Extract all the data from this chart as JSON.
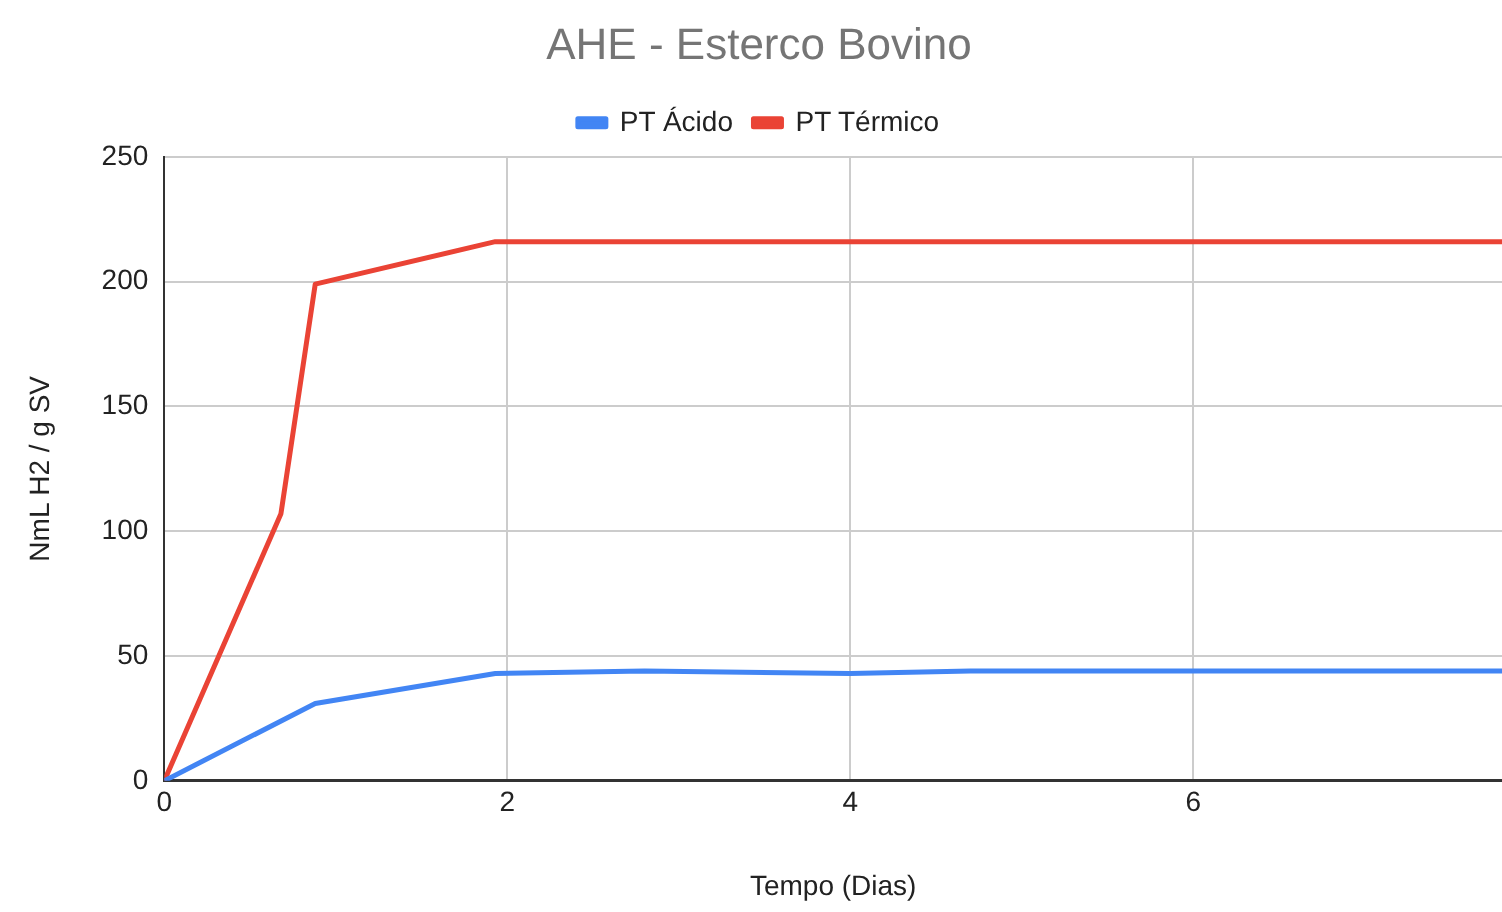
{
  "chart_data": {
    "type": "line",
    "title": "AHE - Esterco Bovino",
    "xlabel": "Tempo (Dias)",
    "ylabel": "NmL H2 / g SV",
    "xlim": [
      0,
      7.8
    ],
    "xticks": [
      0,
      2,
      4,
      6
    ],
    "ylim": [
      0,
      250
    ],
    "yticks": [
      0,
      50,
      100,
      150,
      200,
      250
    ],
    "grid": true,
    "legend": "top",
    "marker": "none",
    "line_style": "solid",
    "series": [
      {
        "name": "PT Ácido",
        "color": "#4285f4",
        "x": [
          0,
          0.88,
          1.93,
          2.8,
          4,
          4.7,
          7.8
        ],
        "values": [
          0,
          31,
          43,
          44,
          43,
          44,
          44
        ]
      },
      {
        "name": "PT Térmico",
        "color": "#ea4335",
        "x": [
          0,
          0.68,
          0.88,
          1.93,
          7.8
        ],
        "values": [
          0,
          107,
          199,
          216,
          216
        ]
      }
    ]
  }
}
